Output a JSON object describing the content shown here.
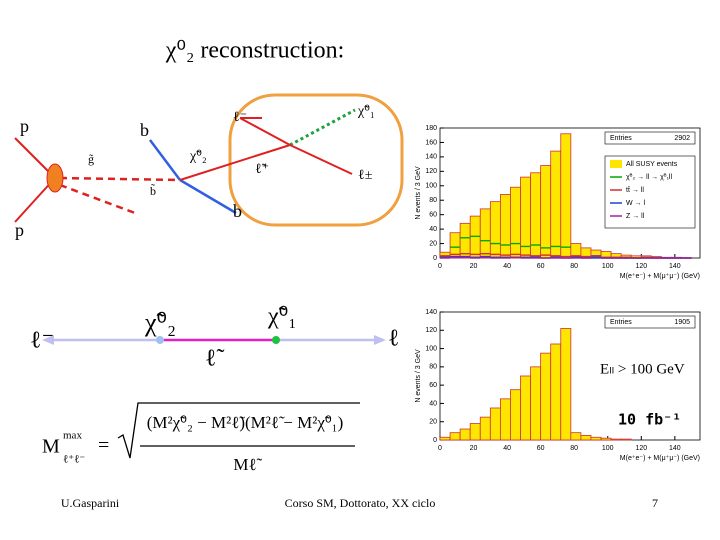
{
  "title": "χ⁰₂ reconstruction:",
  "diagram": {
    "labels": [
      "p",
      "p",
      "b",
      "b",
      "g̃",
      "b̃",
      "χ̃⁰₂",
      "χ̃⁰₁",
      "ℓ̃⁺",
      "ℓ⁻",
      "ℓ±"
    ]
  },
  "chain": {
    "labels": [
      "ℓ⁻",
      "χ̃⁰₂",
      "χ̃⁰₁",
      "ℓ̃",
      "ℓ"
    ]
  },
  "formula": {
    "lhs": "M",
    "sup": "max",
    "sub": "ℓ⁺ℓ⁻",
    "equals": "=",
    "numerator": "(M²χ̃⁰₂ − M²ℓ̃)(M²ℓ̃ − M²χ̃⁰₁)",
    "denominator": "Mℓ̃"
  },
  "footer": {
    "author": "U.Gasparini",
    "course": "Corso SM, Dottorato, XX ciclo",
    "page": "7"
  },
  "chart_data": [
    {
      "type": "histogram",
      "ylabel": "N events / 3 GeV",
      "xlabel": "M(e⁺e⁻) + M(μ⁺μ⁻) (GeV)",
      "entries_label": "Entries",
      "entries": 2902,
      "bins": [
        0,
        6,
        12,
        18,
        24,
        30,
        36,
        42,
        48,
        54,
        60,
        66,
        72,
        78,
        84,
        90,
        96,
        102,
        108,
        114,
        120,
        126,
        132,
        138,
        144,
        150
      ],
      "xlim": [
        0,
        155
      ],
      "xticks": [
        0,
        20,
        40,
        60,
        80,
        100,
        120,
        140
      ],
      "ylim": [
        0,
        180
      ],
      "yticks": [
        0,
        20,
        40,
        60,
        80,
        100,
        120,
        140,
        160,
        180
      ],
      "series": [
        {
          "name": "All SUSY events",
          "color": "#ffe600",
          "values": [
            8,
            35,
            48,
            58,
            68,
            78,
            88,
            98,
            112,
            118,
            128,
            148,
            172,
            20,
            14,
            11,
            9,
            6,
            4,
            3,
            3,
            2,
            1,
            1,
            0
          ]
        },
        {
          "name": "χ̃⁰₂ → ll → χ̃⁰₁ll",
          "color": "#00aa00",
          "values": [
            2,
            15,
            28,
            30,
            24,
            20,
            18,
            20,
            16,
            18,
            14,
            16,
            15,
            2,
            1,
            1,
            0,
            0,
            0,
            0,
            0,
            0,
            0,
            0,
            0
          ]
        },
        {
          "name": "tt̄ → ll",
          "color": "#d03030",
          "values": [
            3,
            5,
            6,
            5,
            6,
            5,
            4,
            5,
            4,
            3,
            4,
            3,
            2,
            3,
            2,
            2,
            1,
            1,
            1,
            0,
            1,
            0,
            0,
            0,
            0
          ]
        },
        {
          "name": "W → l",
          "color": "#2040d0",
          "values": [
            1,
            2,
            2,
            1,
            2,
            1,
            1,
            1,
            1,
            1,
            0,
            1,
            0,
            1,
            0,
            0,
            0,
            0,
            0,
            0,
            0,
            0,
            0,
            0,
            0
          ]
        },
        {
          "name": "Z → ll",
          "color": "#a020a0",
          "values": [
            0,
            1,
            1,
            0,
            1,
            0,
            0,
            1,
            0,
            0,
            0,
            0,
            0,
            0,
            0,
            3,
            0,
            0,
            0,
            0,
            0,
            0,
            0,
            0,
            0
          ]
        }
      ]
    },
    {
      "type": "histogram",
      "ylabel": "N events / 3 GeV",
      "xlabel": "M(e⁺e⁻) + M(μ⁺μ⁻) (GeV)",
      "entries_label": "Entries",
      "entries": 1905,
      "bins": [
        0,
        6,
        12,
        18,
        24,
        30,
        36,
        42,
        48,
        54,
        60,
        66,
        72,
        78,
        84,
        90,
        96,
        102,
        108,
        114,
        120,
        126,
        132,
        138,
        144,
        150
      ],
      "xlim": [
        0,
        155
      ],
      "xticks": [
        0,
        20,
        40,
        60,
        80,
        100,
        120,
        140
      ],
      "ylim": [
        0,
        140
      ],
      "yticks": [
        0,
        20,
        40,
        60,
        80,
        100,
        120,
        140
      ],
      "annotations": [
        "Eₗₗ > 100 GeV",
        "10 fb⁻¹"
      ],
      "series": [
        {
          "name": "All SUSY events",
          "color": "#ffe600",
          "values": [
            3,
            8,
            12,
            18,
            25,
            35,
            45,
            55,
            70,
            80,
            95,
            105,
            122,
            8,
            5,
            3,
            2,
            1,
            1,
            0,
            0,
            0,
            0,
            0,
            0
          ]
        }
      ]
    }
  ]
}
